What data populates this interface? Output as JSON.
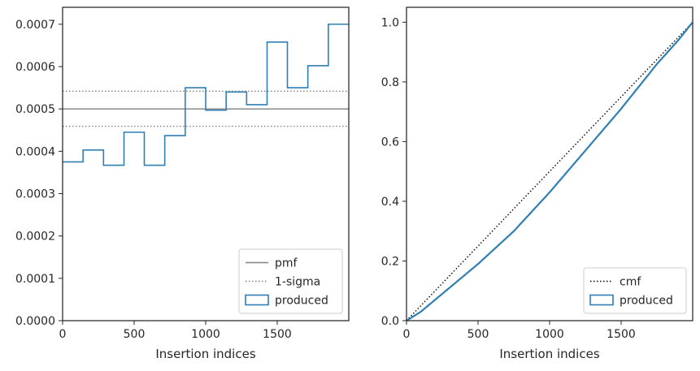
{
  "chart_data": [
    {
      "type": "step",
      "xlabel": "Insertion indices",
      "ylabel": "",
      "xlim": [
        0,
        2000
      ],
      "ylim": [
        0,
        0.00074
      ],
      "xticks": [
        "0",
        "500",
        "1000",
        "1500"
      ],
      "yticks": [
        "0.0000",
        "0.0001",
        "0.0002",
        "0.0003",
        "0.0004",
        "0.0005",
        "0.0006",
        "0.0007"
      ],
      "grid": false,
      "legend_position": "lower-right",
      "series": [
        {
          "name": "pmf",
          "style": "solid",
          "color": "#808080",
          "y": 0.0005
        },
        {
          "name": "1-sigma",
          "style": "dotted",
          "color": "#808080",
          "values": [
            0.000542,
            0.000459
          ]
        },
        {
          "name": "produced",
          "style": "step",
          "color": "#2f7fb3",
          "bin_edges": [
            0,
            143,
            286,
            429,
            571,
            714,
            857,
            1000,
            1143,
            1286,
            1429,
            1571,
            1714,
            1857,
            2000
          ],
          "values": [
            0.000375,
            0.000403,
            0.000367,
            0.000445,
            0.000367,
            0.000437,
            0.00055,
            0.000497,
            0.00054,
            0.00051,
            0.000658,
            0.00055,
            0.000602,
            0.0007
          ]
        }
      ]
    },
    {
      "type": "line",
      "xlabel": "Insertion indices",
      "ylabel": "",
      "xlim": [
        0,
        2000
      ],
      "ylim": [
        0,
        1.05
      ],
      "xticks": [
        "0",
        "500",
        "1000",
        "1500"
      ],
      "yticks": [
        "0.0",
        "0.2",
        "0.4",
        "0.6",
        "0.8",
        "1.0"
      ],
      "grid": false,
      "legend_position": "lower-right",
      "series": [
        {
          "name": "cmf",
          "style": "dotted",
          "color": "#000000",
          "x": [
            0,
            2000
          ],
          "y": [
            0,
            1
          ]
        },
        {
          "name": "produced",
          "style": "solid",
          "color": "#2f7fb3",
          "x": [
            0,
            100,
            250,
            500,
            750,
            1000,
            1250,
            1500,
            1750,
            1900,
            2000
          ],
          "y": [
            0,
            0.03,
            0.09,
            0.19,
            0.3,
            0.43,
            0.57,
            0.71,
            0.86,
            0.94,
            1.0
          ]
        }
      ]
    }
  ]
}
